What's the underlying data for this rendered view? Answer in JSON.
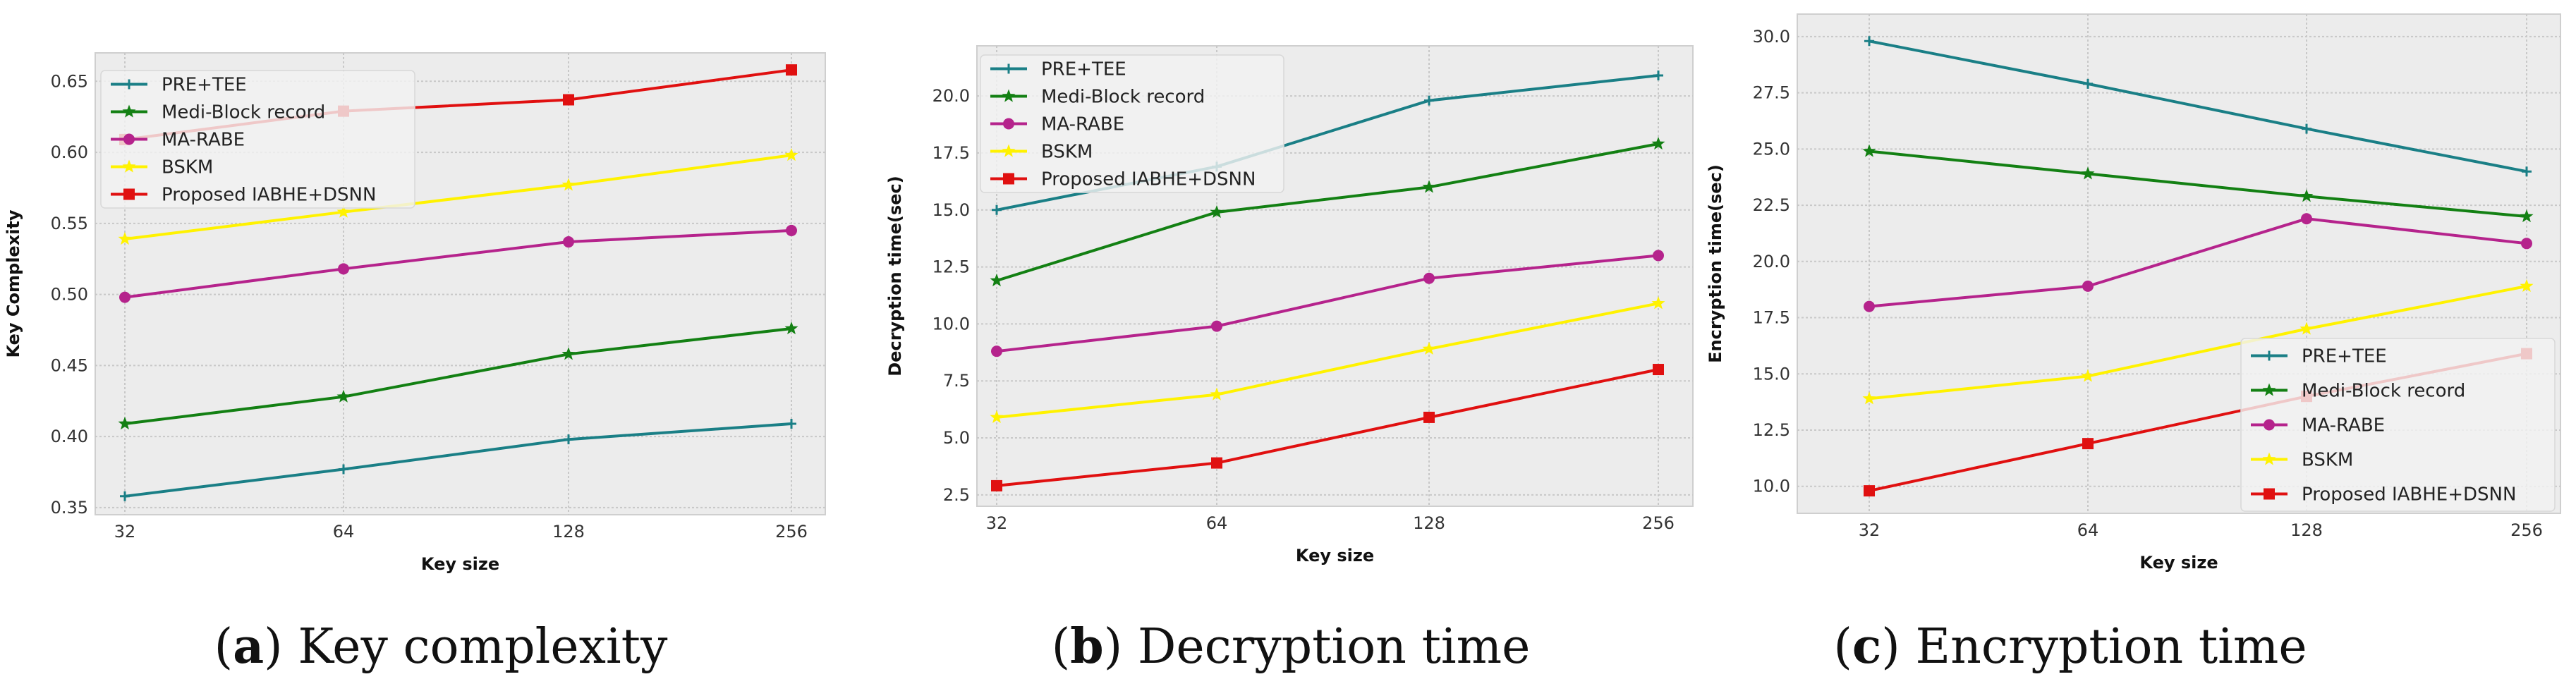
{
  "chart_data": [
    {
      "type": "line",
      "caption": {
        "letter": "a",
        "text": "Key complexity"
      },
      "title": "",
      "xlabel": "Key size",
      "ylabel": "Key Complexity",
      "categories": [
        "32",
        "64",
        "128",
        "256"
      ],
      "ylim": [
        0.345,
        0.67
      ],
      "yticks": [
        "0.35",
        "0.40",
        "0.45",
        "0.50",
        "0.55",
        "0.60",
        "0.65"
      ],
      "legend_position": "top-left",
      "grid": true,
      "series": [
        {
          "name": "PRE+TEE",
          "color": "#1a7f86",
          "marker": "plus",
          "values": [
            0.358,
            0.377,
            0.398,
            0.409
          ]
        },
        {
          "name": "Medi-Block record",
          "color": "#138013",
          "marker": "star",
          "values": [
            0.409,
            0.428,
            0.458,
            0.476
          ]
        },
        {
          "name": "MA-RABE",
          "color": "#b5238c",
          "marker": "circle",
          "values": [
            0.498,
            0.518,
            0.537,
            0.545
          ]
        },
        {
          "name": "BSKM",
          "color": "#fff200",
          "marker": "star",
          "values": [
            0.539,
            0.558,
            0.577,
            0.598
          ]
        },
        {
          "name": "Proposed IABHE+DSNN",
          "color": "#e01010",
          "marker": "square",
          "values": [
            0.609,
            0.629,
            0.637,
            0.658
          ]
        }
      ]
    },
    {
      "type": "line",
      "caption": {
        "letter": "b",
        "text": "Decryption time"
      },
      "title": "",
      "xlabel": "Key size",
      "ylabel": "Decryption time(sec)",
      "categories": [
        "32",
        "64",
        "128",
        "256"
      ],
      "ylim": [
        2.0,
        22.2
      ],
      "yticks": [
        "2.5",
        "5.0",
        "7.5",
        "10.0",
        "12.5",
        "15.0",
        "17.5",
        "20.0"
      ],
      "legend_position": "top-left",
      "grid": true,
      "series": [
        {
          "name": "PRE+TEE",
          "color": "#1a7f86",
          "marker": "plus",
          "values": [
            15.0,
            16.9,
            19.8,
            20.9
          ]
        },
        {
          "name": "Medi-Block record",
          "color": "#138013",
          "marker": "star",
          "values": [
            11.9,
            14.9,
            16.0,
            17.9
          ]
        },
        {
          "name": "MA-RABE",
          "color": "#b5238c",
          "marker": "circle",
          "values": [
            8.8,
            9.9,
            12.0,
            13.0
          ]
        },
        {
          "name": "BSKM",
          "color": "#fff200",
          "marker": "star",
          "values": [
            5.9,
            6.9,
            8.9,
            10.9
          ]
        },
        {
          "name": "Proposed IABHE+DSNN",
          "color": "#e01010",
          "marker": "square",
          "values": [
            2.9,
            3.9,
            5.9,
            8.0
          ]
        }
      ]
    },
    {
      "type": "line",
      "caption": {
        "letter": "c",
        "text": "Encryption time"
      },
      "title": "",
      "xlabel": "Key size",
      "ylabel": "Encryption time(sec)",
      "categories": [
        "32",
        "64",
        "128",
        "256"
      ],
      "ylim": [
        8.8,
        31.0
      ],
      "yticks": [
        "10.0",
        "12.5",
        "15.0",
        "17.5",
        "20.0",
        "22.5",
        "25.0",
        "27.5",
        "30.0"
      ],
      "legend_position": "bottom-right",
      "grid": true,
      "series": [
        {
          "name": "PRE+TEE",
          "color": "#1a7f86",
          "marker": "plus",
          "values": [
            29.8,
            27.9,
            25.9,
            24.0
          ]
        },
        {
          "name": "Medi-Block record",
          "color": "#138013",
          "marker": "star",
          "values": [
            24.9,
            23.9,
            22.9,
            22.0
          ]
        },
        {
          "name": "MA-RABE",
          "color": "#b5238c",
          "marker": "circle",
          "values": [
            18.0,
            18.9,
            21.9,
            20.8
          ]
        },
        {
          "name": "BSKM",
          "color": "#fff200",
          "marker": "star",
          "values": [
            13.9,
            14.9,
            17.0,
            18.9
          ]
        },
        {
          "name": "Proposed IABHE+DSNN",
          "color": "#e01010",
          "marker": "square",
          "values": [
            9.8,
            11.9,
            14.0,
            15.9
          ]
        }
      ]
    }
  ]
}
